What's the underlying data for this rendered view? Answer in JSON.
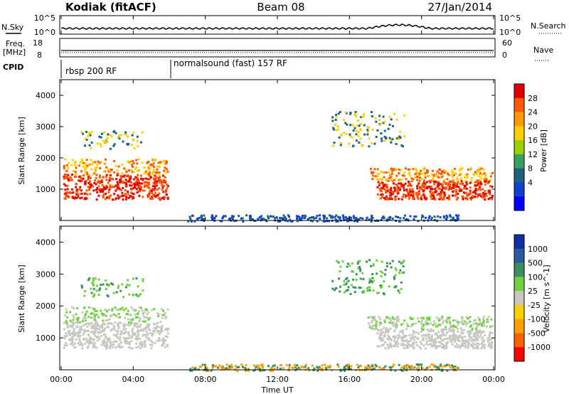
{
  "header": {
    "station": "Kodiak (fitACF)",
    "beam": "Beam 08",
    "date": "27/Jan/2014"
  },
  "chart_data": [
    {
      "type": "line",
      "panel": "noise",
      "left_label": "N.Sky",
      "right_label": "N.Search",
      "left_ticks": [
        "10^5",
        "10^0"
      ],
      "right_ticks": [
        "10^5",
        "10^0"
      ]
    },
    {
      "type": "line",
      "panel": "frequency",
      "left_label": "Freq.",
      "left_unit": "[MHz]",
      "right_label": "Nave",
      "left_ticks": [
        "18",
        "8"
      ],
      "right_ticks": [
        "60",
        "0"
      ]
    },
    {
      "type": "table",
      "panel": "cpid",
      "label": "CPID",
      "segments": [
        {
          "start_hour": 0,
          "end_hour": 6,
          "text": "rbsp 200 RF"
        },
        {
          "start_hour": 6,
          "end_hour": 24,
          "text": "normalsound (fast) 157 RF"
        }
      ]
    },
    {
      "type": "heatmap",
      "panel": "power",
      "ylabel": "Slant Range [km]",
      "yticks": [
        1000,
        2000,
        3000,
        4000
      ],
      "ylim": [
        0,
        4500
      ],
      "colorbar_label": "Power [dB]",
      "colorbar_ticks": [
        "28",
        "24",
        "20",
        "16",
        "12",
        "8",
        "4"
      ],
      "colors": [
        "#e00000",
        "#ff5a00",
        "#ff9a00",
        "#ffd000",
        "#98d000",
        "#3aa060",
        "#1e6080",
        "#1040d0",
        "#0000ff"
      ]
    },
    {
      "type": "heatmap",
      "panel": "velocity",
      "ylabel": "Slant Range [km]",
      "yticks": [
        1000,
        2000,
        3000,
        4000
      ],
      "ylim": [
        0,
        4500
      ],
      "colorbar_label": "Velocity [m s^-1]",
      "colorbar_ticks": [
        "1000",
        "500",
        "100",
        "25",
        "-25",
        "-100",
        "-500",
        "-1000"
      ],
      "colors": [
        "#1030a0",
        "#2a5aa0",
        "#3a9060",
        "#70d040",
        "#c8c8c0",
        "#ffd000",
        "#ffa000",
        "#ff6000",
        "#ff0000"
      ]
    },
    {
      "type": "axis",
      "xlabel": "Time UT",
      "xticks": [
        "00:00",
        "04:00",
        "08:00",
        "12:00",
        "16:00",
        "20:00",
        "00:00"
      ],
      "xlim_hours": [
        0,
        24
      ]
    }
  ]
}
